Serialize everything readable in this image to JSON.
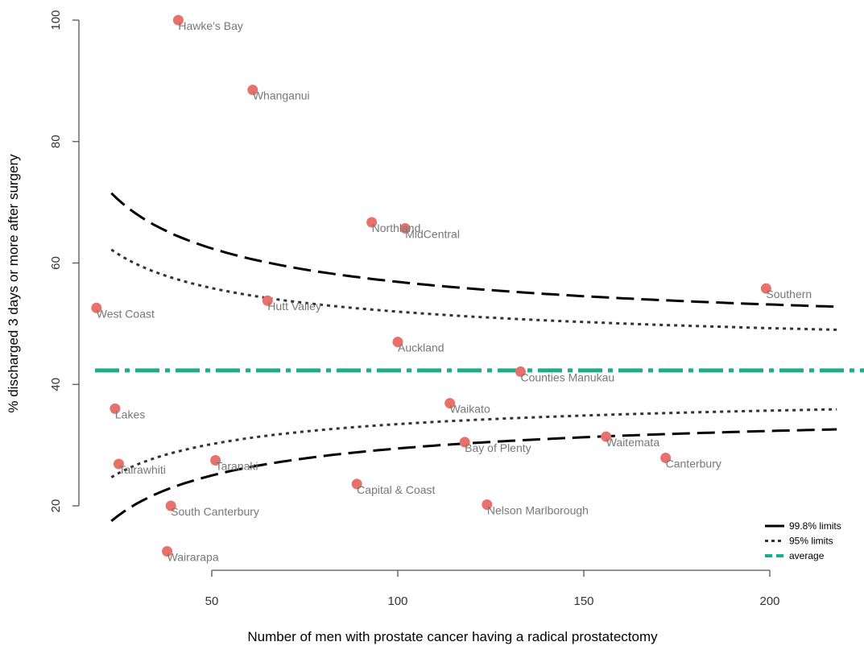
{
  "chart_data": {
    "type": "scatter",
    "title": "",
    "xlabel": "Number of men with prostate cancer having a radical prostatectomy",
    "ylabel": "% discharged 3 days or more after surgery",
    "xlim": [
      18,
      220
    ],
    "ylim": [
      9,
      101
    ],
    "x_ticks": [
      50,
      100,
      150,
      200
    ],
    "y_ticks": [
      20,
      40,
      60,
      80,
      100
    ],
    "average": 42.3,
    "n_range": [
      23,
      218
    ],
    "limits": {
      "upper_998_at_min": 71.5,
      "upper_998_at_max": 52.8,
      "upper_95_at_min": 62.2,
      "upper_95_at_max": 49.0,
      "lower_95_at_min": 24.7,
      "lower_95_at_max": 35.9,
      "lower_998_at_min": 17.5,
      "lower_998_at_max": 32.6
    },
    "points": [
      {
        "label": "Hawke's Bay",
        "x": 41,
        "y": 100.0
      },
      {
        "label": "Whanganui",
        "x": 61,
        "y": 88.5
      },
      {
        "label": "Northland",
        "x": 93,
        "y": 66.7
      },
      {
        "label": "MidCentral",
        "x": 102,
        "y": 65.7
      },
      {
        "label": "Southern",
        "x": 199,
        "y": 55.8
      },
      {
        "label": "Hutt Valley",
        "x": 65,
        "y": 53.8
      },
      {
        "label": "West Coast",
        "x": 19,
        "y": 52.6
      },
      {
        "label": "Auckland",
        "x": 100,
        "y": 47.0
      },
      {
        "label": "Counties Manukau",
        "x": 133,
        "y": 42.1
      },
      {
        "label": "Lakes",
        "x": 24,
        "y": 36.0
      },
      {
        "label": "Waikato",
        "x": 114,
        "y": 36.9
      },
      {
        "label": "Bay of Plenty",
        "x": 118,
        "y": 30.5
      },
      {
        "label": "Waitemata",
        "x": 156,
        "y": 31.4
      },
      {
        "label": "Canterbury",
        "x": 172,
        "y": 27.9
      },
      {
        "label": "Tairawhiti",
        "x": 25,
        "y": 26.9
      },
      {
        "label": "Taranaki",
        "x": 51,
        "y": 27.5
      },
      {
        "label": "Capital & Coast",
        "x": 89,
        "y": 23.6
      },
      {
        "label": "South Canterbury",
        "x": 39,
        "y": 20.0
      },
      {
        "label": "Nelson Marlborough",
        "x": 124,
        "y": 20.2
      },
      {
        "label": "Wairarapa",
        "x": 38,
        "y": 12.5
      }
    ],
    "legend": {
      "position": "bottom-right",
      "entries": [
        {
          "label": "99.8% limits",
          "style": "long-dash",
          "color": "#000000"
        },
        {
          "label": "95% limits",
          "style": "dotted",
          "color": "#333333"
        },
        {
          "label": "average",
          "style": "dash",
          "color": "#1aaf8b"
        }
      ]
    },
    "colors": {
      "point": "#e8716b",
      "average": "#1aaf8b",
      "limits_998": "#000000",
      "limits_95": "#333333",
      "axis": "#555555"
    }
  }
}
